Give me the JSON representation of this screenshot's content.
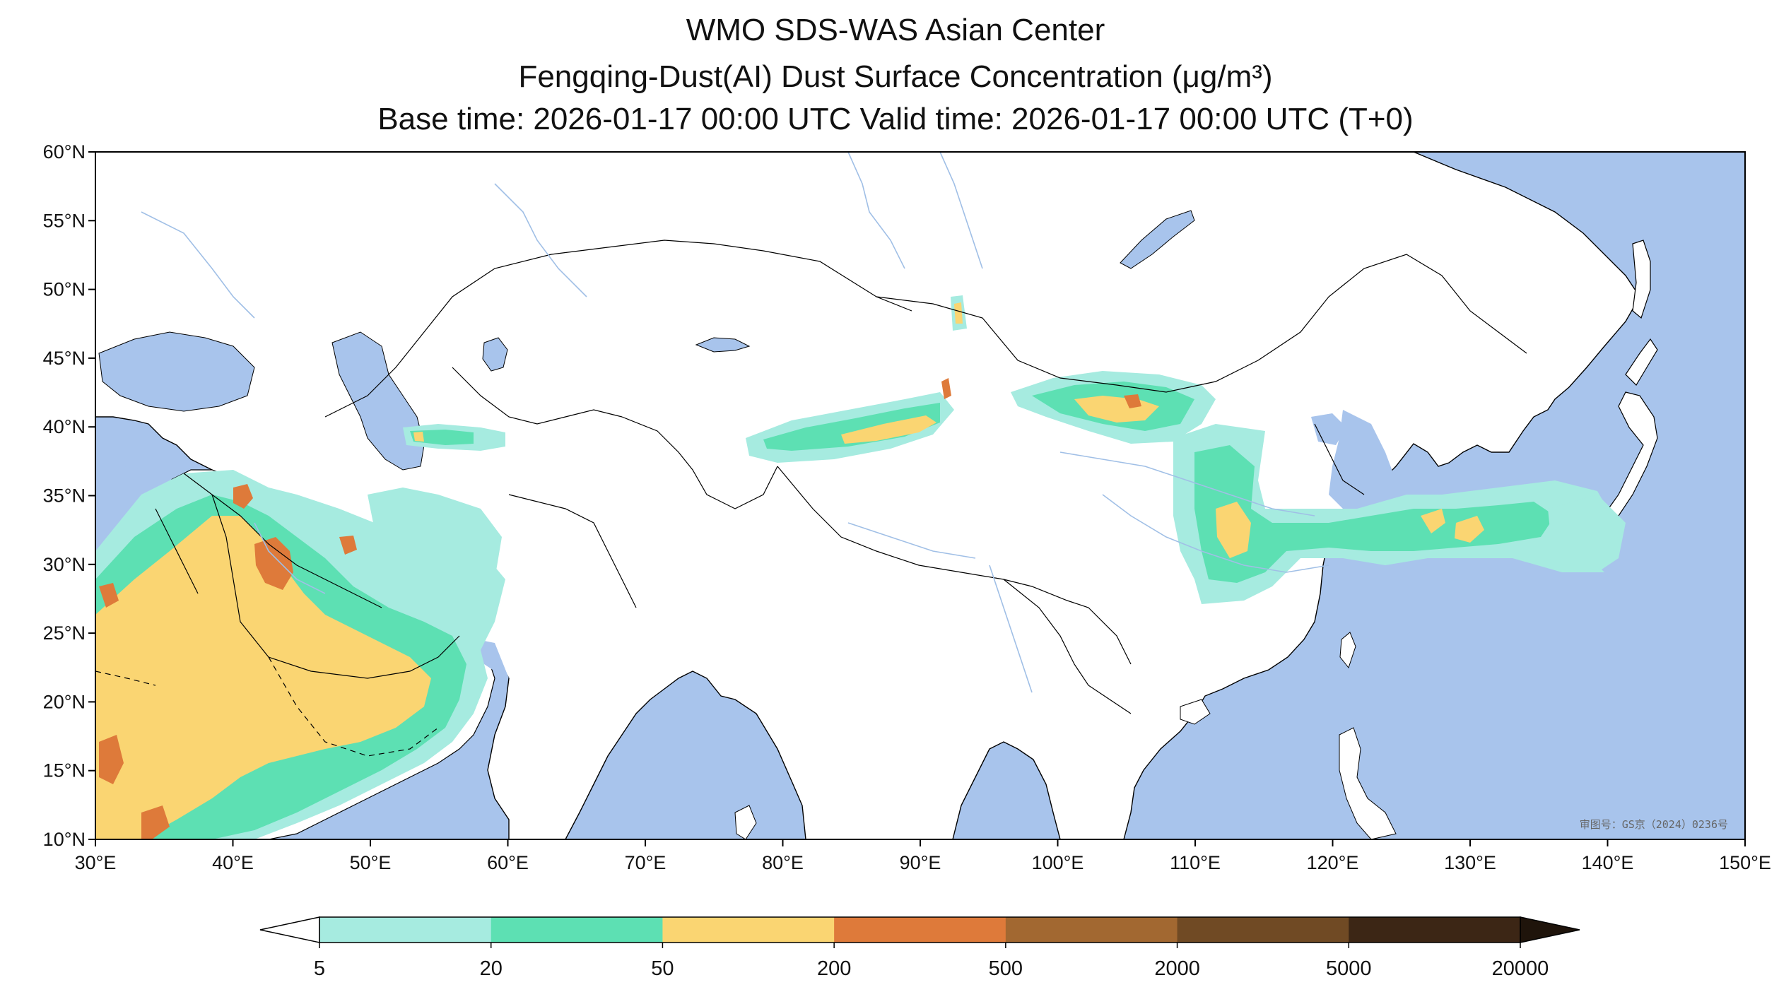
{
  "titles": {
    "line1": "WMO SDS-WAS Asian Center",
    "line2": "Fengqing-Dust(AI) Dust Surface Concentration (μg/m³)",
    "line3": "Base time: 2026-01-17 00:00 UTC Valid time: 2026-01-17 00:00 UTC (T+0)"
  },
  "map": {
    "lon_range": [
      30,
      150
    ],
    "lat_range": [
      10,
      60
    ],
    "lon_ticks": [
      "30°E",
      "40°E",
      "50°E",
      "60°E",
      "70°E",
      "80°E",
      "90°E",
      "100°E",
      "110°E",
      "120°E",
      "130°E",
      "140°E",
      "150°E"
    ],
    "lat_ticks": [
      "10°N",
      "15°N",
      "20°N",
      "25°N",
      "30°N",
      "35°N",
      "40°N",
      "45°N",
      "50°N",
      "55°N",
      "60°N"
    ],
    "approval_text": "审图号：GS京（2024）0236号",
    "colors": {
      "ocean": "#a8c4ec",
      "land": "#ffffff",
      "border": "#000000",
      "river": "#a0bfe6"
    }
  },
  "colorbar": {
    "extend": "both",
    "tick_labels": [
      "5",
      "20",
      "50",
      "200",
      "500",
      "2000",
      "5000",
      "20000"
    ],
    "colors": [
      "#a6ebe0",
      "#5de0b3",
      "#fad572",
      "#de7a3a",
      "#a26831",
      "#704a24",
      "#3c2615"
    ],
    "under_color": "#ffffff",
    "over_color": "#1f140b"
  }
}
